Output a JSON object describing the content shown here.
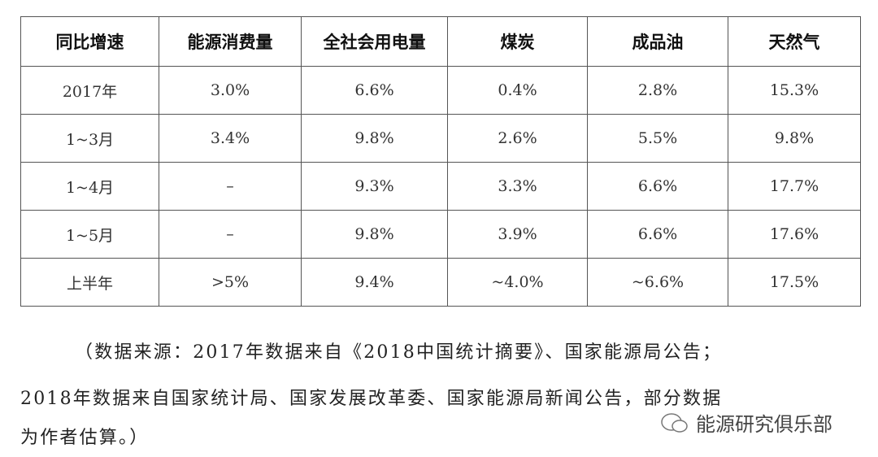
{
  "table": {
    "header": [
      "同比增速",
      "能源消费量",
      "全社会用电量",
      "煤炭",
      "成品油",
      "天然气"
    ],
    "rows": [
      [
        "2017年",
        "3.0%",
        "6.6%",
        "0.4%",
        "2.8%",
        "15.3%"
      ],
      [
        "1~3月",
        "3.4%",
        "9.8%",
        "2.6%",
        "5.5%",
        "9.8%"
      ],
      [
        "1~4月",
        "–",
        "9.3%",
        "3.3%",
        "6.6%",
        "17.7%"
      ],
      [
        "1~5月",
        "–",
        "9.8%",
        "3.9%",
        "6.6%",
        "17.6%"
      ],
      [
        "上半年",
        ">5%",
        "9.4%",
        "~4.0%",
        "~6.6%",
        "17.5%"
      ]
    ]
  },
  "note": {
    "lines": [
      "（数据来源：2017年数据来自《2018中国统计摘要》、国家能源局公告；",
      "2018年数据来自国家统计局、国家发展改革委、国家能源局新闻公告，部分数据",
      "为作者估算。）"
    ]
  },
  "watermark": "能源研究俱乐部"
}
